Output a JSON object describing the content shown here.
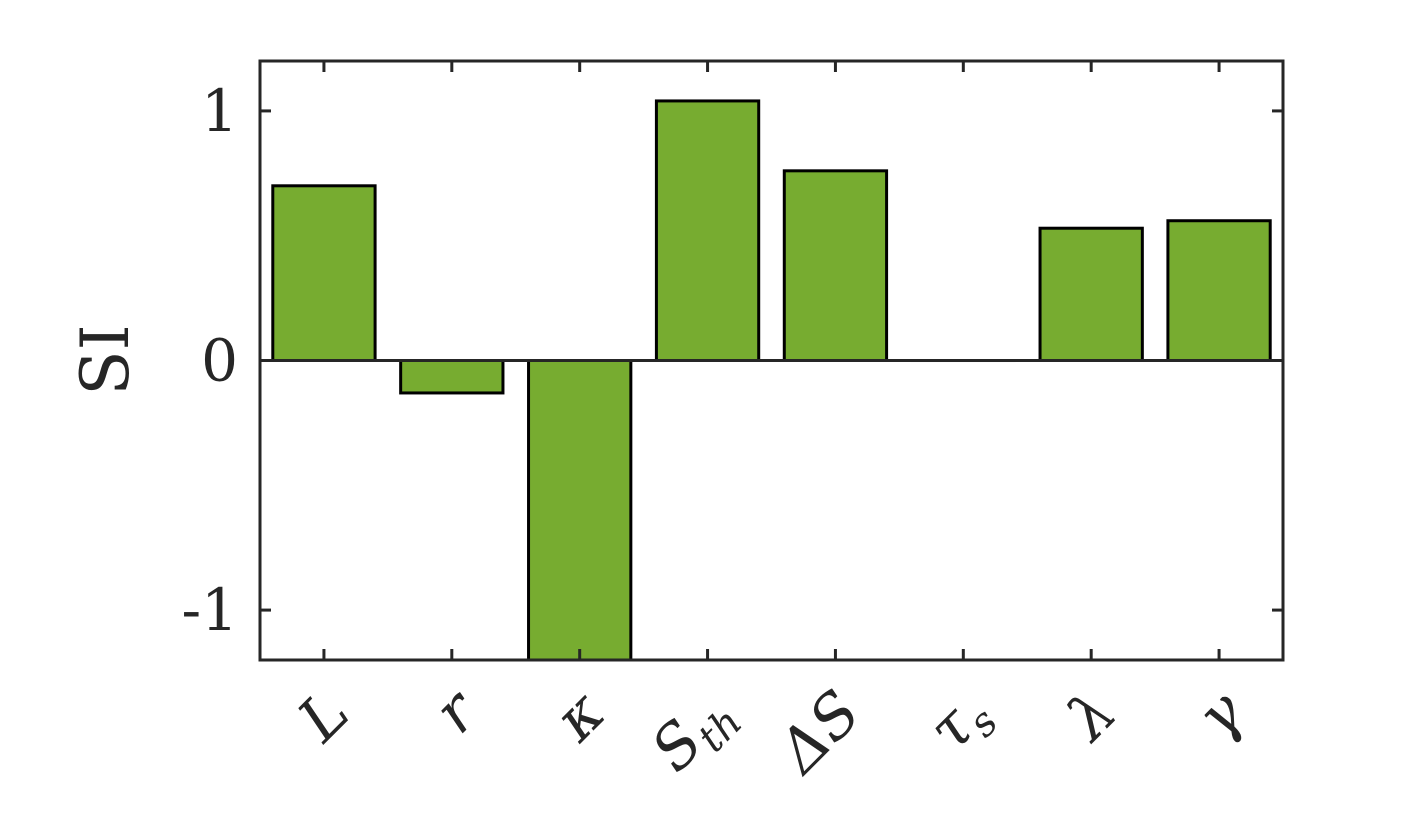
{
  "chart_data": {
    "type": "bar",
    "title": "",
    "xlabel": "",
    "ylabel": "SI",
    "categories": [
      "L",
      "r",
      "κ",
      "Sth",
      "ΔS",
      "τs",
      "λ",
      "γ"
    ],
    "category_labels": [
      {
        "base": "L",
        "sub": ""
      },
      {
        "base": "r",
        "sub": ""
      },
      {
        "base": "κ",
        "sub": ""
      },
      {
        "base": "S",
        "sub": "th"
      },
      {
        "base": "ΔS",
        "sub": ""
      },
      {
        "base": "τ",
        "sub": "s"
      },
      {
        "base": "λ",
        "sub": ""
      },
      {
        "base": "γ",
        "sub": ""
      }
    ],
    "values": [
      0.7,
      -0.13,
      -1.25,
      1.04,
      0.76,
      0.0,
      0.53,
      0.56
    ],
    "ylim": [
      -1.2,
      1.2
    ],
    "yticks": [
      -1,
      0,
      1
    ],
    "ytick_labels": [
      "-1",
      "0",
      "1"
    ],
    "grid": false,
    "legend": "none",
    "bar_color": "#77AC30",
    "edge_color": "#000000",
    "axis_color": "#262626"
  }
}
